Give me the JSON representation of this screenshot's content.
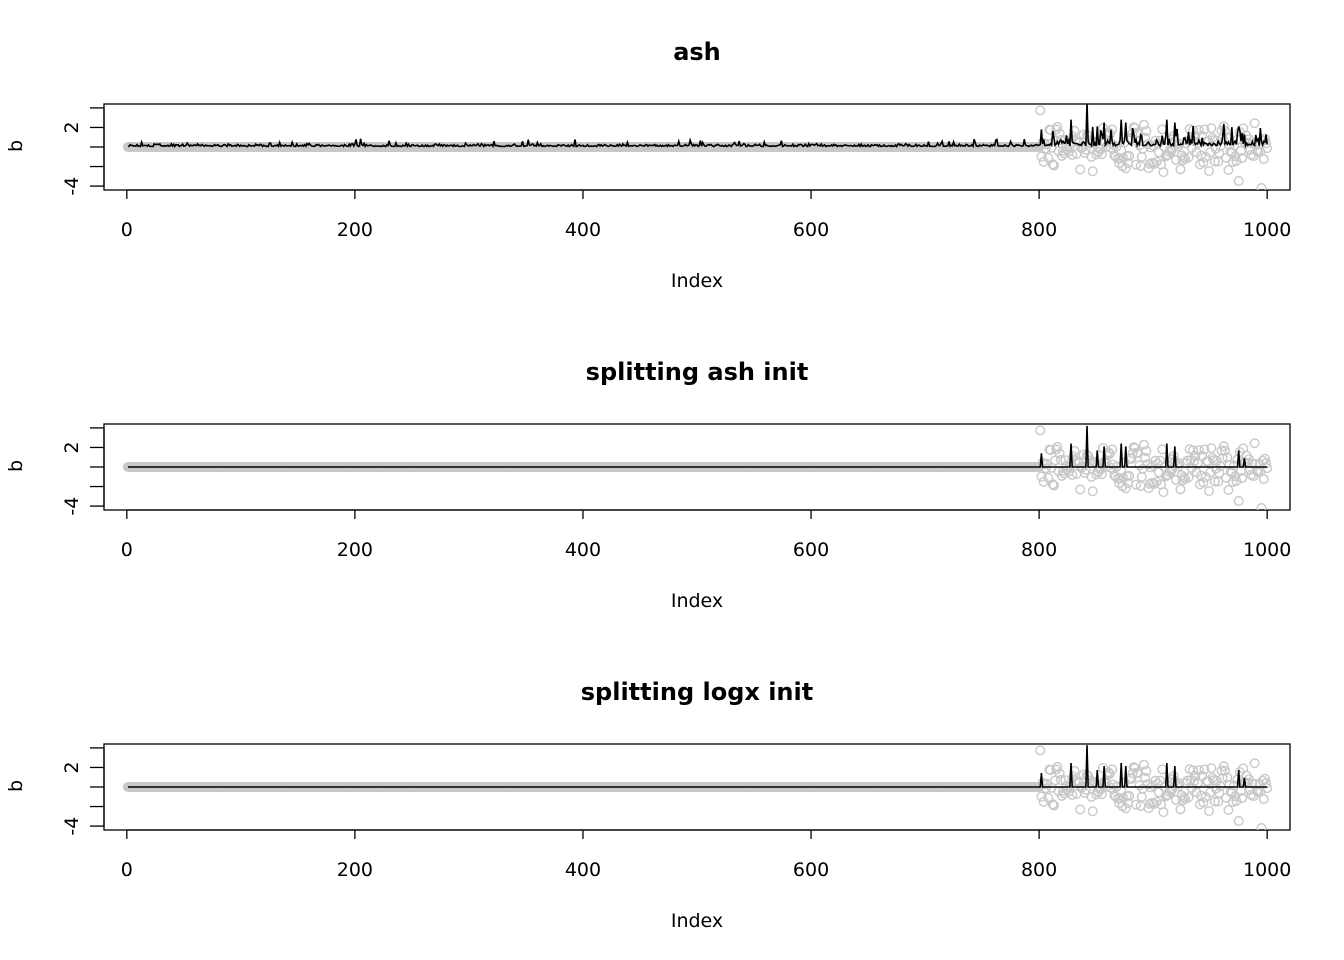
{
  "chart_data": [
    {
      "type": "scatter",
      "title": "ash",
      "xlabel": "Index",
      "ylabel": "b",
      "xlim": [
        -20,
        1020
      ],
      "ylim": [
        -4.4,
        4.4
      ],
      "x_ticks": [
        0,
        200,
        400,
        600,
        800,
        1000
      ],
      "y_ticks": [
        -4,
        -2,
        0,
        2,
        4
      ],
      "y_tick_labels": [
        "-4",
        "",
        "",
        "2",
        ""
      ],
      "n": 1000,
      "series": [
        {
          "style": "points",
          "color": "#c8c8c8"
        },
        {
          "style": "line",
          "color": "#000000"
        }
      ]
    },
    {
      "type": "scatter",
      "title": "splitting ash init",
      "xlabel": "Index",
      "ylabel": "b",
      "xlim": [
        -20,
        1020
      ],
      "ylim": [
        -4.4,
        4.4
      ],
      "x_ticks": [
        0,
        200,
        400,
        600,
        800,
        1000
      ],
      "y_ticks": [
        -4,
        -2,
        0,
        2,
        4
      ],
      "y_tick_labels": [
        "-4",
        "",
        "",
        "2",
        ""
      ],
      "n": 1000,
      "series": [
        {
          "style": "points",
          "color": "#c8c8c8"
        },
        {
          "style": "line",
          "color": "#000000"
        }
      ]
    },
    {
      "type": "scatter",
      "title": "splitting logx init",
      "xlabel": "Index",
      "ylabel": "b",
      "xlim": [
        -20,
        1020
      ],
      "ylim": [
        -4.4,
        4.4
      ],
      "x_ticks": [
        0,
        200,
        400,
        600,
        800,
        1000
      ],
      "y_ticks": [
        -4,
        -2,
        0,
        2,
        4
      ],
      "y_tick_labels": [
        "-4",
        "",
        "",
        "2",
        ""
      ],
      "n": 1000,
      "series": [
        {
          "style": "points",
          "color": "#c8c8c8"
        },
        {
          "style": "line",
          "color": "#000000"
        }
      ]
    }
  ]
}
